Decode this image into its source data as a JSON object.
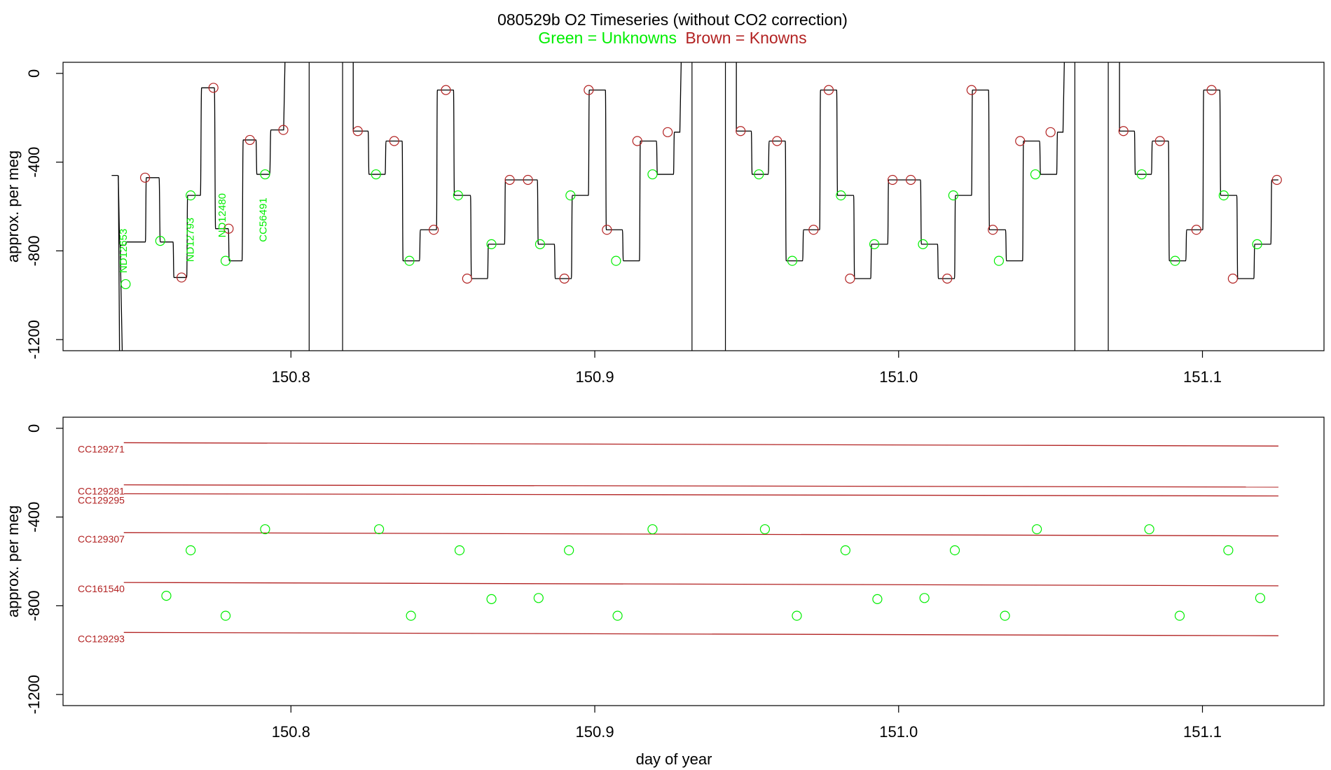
{
  "title": "080529b   O2 Timeseries (without CO2 correction)",
  "legend": {
    "unknowns_text": "Green = Unknowns",
    "knowns_text": "Brown = Knowns",
    "unknowns_color": "#00ee00",
    "knowns_color": "#b22222"
  },
  "colors": {
    "trace": "#000000",
    "unknowns": "#00ee00",
    "knowns": "#b22222"
  },
  "chart_data": [
    {
      "type": "line",
      "ylabel": "approx. per meg",
      "xlabel": "",
      "xlim": [
        150.725,
        151.14
      ],
      "ylim": [
        -1250,
        50
      ],
      "x_ticks": [
        150.8,
        150.9,
        151.0,
        151.1
      ],
      "x_tick_labels": [
        "150.8",
        "150.9",
        "151.0",
        "151.1"
      ],
      "y_ticks": [
        0,
        -400,
        -800,
        -1200
      ],
      "y_tick_labels": [
        "0",
        "-400",
        "-800",
        "-1200"
      ],
      "grid": false,
      "gaps": [
        [
          150.806,
          150.817
        ],
        [
          150.932,
          150.943
        ],
        [
          151.058,
          151.069
        ]
      ],
      "series": [
        {
          "color": "black",
          "cycles": [
            {
              "levels": [
                [
                  150.741,
                  150.743,
                  -460
                ],
                [
                  150.7438,
                  150.7454,
                  -775
                ],
                [
                  150.746,
                  150.7521,
                  -760
                ],
                [
                  150.7524,
                  150.7566,
                  -470
                ],
                [
                  150.757,
                  150.7612,
                  -760
                ],
                [
                  150.7615,
                  150.7657,
                  -920
                ],
                [
                  150.766,
                  150.7702,
                  -550
                ],
                [
                  150.7706,
                  150.7748,
                  -65
                ],
                [
                  150.7752,
                  150.7794,
                  -700
                ],
                [
                  150.7797,
                  150.7839,
                  -845
                ],
                [
                  150.7843,
                  150.7885,
                  -300
                ],
                [
                  150.7888,
                  150.793,
                  -455
                ],
                [
                  150.7934,
                  150.7976,
                  -255
                ]
              ]
            },
            {
              "levels": [
                [
                  150.8205,
                  150.8254,
                  -260
                ],
                [
                  150.8257,
                  150.831,
                  -455
                ],
                [
                  150.8313,
                  150.8366,
                  -305
                ],
                [
                  150.8369,
                  150.8423,
                  -845
                ],
                [
                  150.8426,
                  150.8479,
                  -705
                ],
                [
                  150.8482,
                  150.8535,
                  -75
                ],
                [
                  150.8538,
                  150.8591,
                  -550
                ],
                [
                  150.8594,
                  150.8647,
                  -925
                ],
                [
                  150.865,
                  150.8703,
                  -770
                ],
                [
                  150.8706,
                  150.8811,
                  -480
                ],
                [
                  150.8814,
                  150.8867,
                  -770
                ],
                [
                  150.887,
                  150.8923,
                  -925
                ],
                [
                  150.8926,
                  150.8979,
                  -550
                ],
                [
                  150.8982,
                  150.9035,
                  -75
                ],
                [
                  150.9038,
                  150.9091,
                  -705
                ],
                [
                  150.9094,
                  150.9147,
                  -845
                ],
                [
                  150.915,
                  150.9203,
                  -305
                ],
                [
                  150.9206,
                  150.9259,
                  -455
                ],
                [
                  150.9262,
                  150.928,
                  -265
                ]
              ]
            },
            {
              "levels": [
                [
                  150.9466,
                  150.9515,
                  -260
                ],
                [
                  150.9518,
                  150.9571,
                  -455
                ],
                [
                  150.9574,
                  150.9627,
                  -305
                ],
                [
                  150.963,
                  150.9684,
                  -845
                ],
                [
                  150.9687,
                  150.974,
                  -705
                ],
                [
                  150.9743,
                  150.9796,
                  -75
                ],
                [
                  150.9799,
                  150.9852,
                  -550
                ],
                [
                  150.9855,
                  150.9908,
                  -925
                ],
                [
                  150.9911,
                  150.9964,
                  -770
                ],
                [
                  150.9967,
                  151.0072,
                  -480
                ],
                [
                  151.0075,
                  151.0128,
                  -770
                ],
                [
                  151.0131,
                  151.0184,
                  -925
                ],
                [
                  151.0187,
                  151.024,
                  -550
                ],
                [
                  151.0243,
                  151.0296,
                  -75
                ],
                [
                  151.0299,
                  151.0352,
                  -705
                ],
                [
                  151.0355,
                  151.0408,
                  -845
                ],
                [
                  151.0411,
                  151.0464,
                  -305
                ],
                [
                  151.0467,
                  151.052,
                  -455
                ],
                [
                  151.0523,
                  151.0541,
                  -265
                ]
              ]
            },
            {
              "levels": [
                [
                  151.0727,
                  151.0776,
                  -260
                ],
                [
                  151.0779,
                  151.0832,
                  -455
                ],
                [
                  151.0835,
                  151.0888,
                  -305
                ],
                [
                  151.0891,
                  151.0945,
                  -845
                ],
                [
                  151.0948,
                  151.1001,
                  -705
                ],
                [
                  151.1004,
                  151.1057,
                  -75
                ],
                [
                  151.106,
                  151.1113,
                  -550
                ],
                [
                  151.1116,
                  151.1169,
                  -925
                ],
                [
                  151.1172,
                  151.1225,
                  -770
                ],
                [
                  151.1228,
                  151.125,
                  -480
                ]
              ]
            }
          ]
        }
      ],
      "knowns_points": [
        [
          150.752,
          -470
        ],
        [
          150.764,
          -920
        ],
        [
          150.7745,
          -65
        ],
        [
          150.7795,
          -700
        ],
        [
          150.7865,
          -300
        ],
        [
          150.7975,
          -255
        ],
        [
          150.822,
          -260
        ],
        [
          150.834,
          -305
        ],
        [
          150.847,
          -705
        ],
        [
          150.851,
          -75
        ],
        [
          150.858,
          -925
        ],
        [
          150.872,
          -480
        ],
        [
          150.878,
          -480
        ],
        [
          150.89,
          -925
        ],
        [
          150.898,
          -75
        ],
        [
          150.904,
          -705
        ],
        [
          150.914,
          -305
        ],
        [
          150.924,
          -265
        ],
        [
          150.948,
          -260
        ],
        [
          150.96,
          -305
        ],
        [
          150.972,
          -705
        ],
        [
          150.977,
          -75
        ],
        [
          150.984,
          -925
        ],
        [
          150.998,
          -480
        ],
        [
          151.004,
          -480
        ],
        [
          151.016,
          -925
        ],
        [
          151.024,
          -75
        ],
        [
          151.031,
          -705
        ],
        [
          151.04,
          -305
        ],
        [
          151.05,
          -265
        ],
        [
          151.074,
          -260
        ],
        [
          151.086,
          -305
        ],
        [
          151.098,
          -705
        ],
        [
          151.103,
          -75
        ],
        [
          151.11,
          -925
        ],
        [
          151.1245,
          -480
        ]
      ],
      "unknowns_points": [
        [
          150.7456,
          -950
        ],
        [
          150.757,
          -755
        ],
        [
          150.767,
          -550
        ],
        [
          150.7785,
          -845
        ],
        [
          150.7915,
          -455
        ],
        [
          150.828,
          -455
        ],
        [
          150.839,
          -845
        ],
        [
          150.855,
          -550
        ],
        [
          150.866,
          -770
        ],
        [
          150.882,
          -770
        ],
        [
          150.892,
          -550
        ],
        [
          150.907,
          -845
        ],
        [
          150.919,
          -455
        ],
        [
          150.954,
          -455
        ],
        [
          150.965,
          -845
        ],
        [
          150.981,
          -550
        ],
        [
          150.992,
          -770
        ],
        [
          151.008,
          -770
        ],
        [
          151.018,
          -550
        ],
        [
          151.033,
          -845
        ],
        [
          151.045,
          -455
        ],
        [
          151.08,
          -455
        ],
        [
          151.091,
          -845
        ],
        [
          151.107,
          -550
        ],
        [
          151.118,
          -770
        ]
      ],
      "annotations": [
        {
          "text": "ND12653",
          "x": 150.746,
          "y": -800
        },
        {
          "text": "ND12793",
          "x": 150.768,
          "y": -750
        },
        {
          "text": "ND12480",
          "x": 150.7785,
          "y": -640
        },
        {
          "text": "CC56491",
          "x": 150.792,
          "y": -660
        }
      ]
    },
    {
      "type": "scatter",
      "ylabel": "approx. per meg",
      "xlabel": "day of year",
      "xlim": [
        150.725,
        151.14
      ],
      "ylim": [
        -1250,
        50
      ],
      "x_ticks": [
        150.8,
        150.9,
        151.0,
        151.1
      ],
      "x_tick_labels": [
        "150.8",
        "150.9",
        "151.0",
        "151.1"
      ],
      "y_ticks": [
        0,
        -400,
        -800,
        -1200
      ],
      "y_tick_labels": [
        "0",
        "-400",
        "-800",
        "-1200"
      ],
      "grid": false,
      "knowns_lines": [
        {
          "name": "CC129271",
          "x0": 150.745,
          "x1": 151.125,
          "y0": -65,
          "y1": -80
        },
        {
          "name": "CC129281",
          "x0": 150.745,
          "x1": 151.125,
          "y0": -255,
          "y1": -265
        },
        {
          "name": "CC129295",
          "x0": 150.745,
          "x1": 151.125,
          "y0": -295,
          "y1": -305
        },
        {
          "name": "CC129307",
          "x0": 150.745,
          "x1": 151.125,
          "y0": -470,
          "y1": -485
        },
        {
          "name": "CC161540",
          "x0": 150.745,
          "x1": 151.125,
          "y0": -695,
          "y1": -710
        },
        {
          "name": "CC129293",
          "x0": 150.745,
          "x1": 151.125,
          "y0": -920,
          "y1": -935
        }
      ],
      "unknowns_points": [
        [
          150.759,
          -755
        ],
        [
          150.767,
          -550
        ],
        [
          150.7785,
          -845
        ],
        [
          150.7915,
          -455
        ],
        [
          150.829,
          -455
        ],
        [
          150.8395,
          -845
        ],
        [
          150.8555,
          -550
        ],
        [
          150.866,
          -770
        ],
        [
          150.8815,
          -765
        ],
        [
          150.8915,
          -550
        ],
        [
          150.9075,
          -845
        ],
        [
          150.919,
          -455
        ],
        [
          150.956,
          -455
        ],
        [
          150.9665,
          -845
        ],
        [
          150.9825,
          -550
        ],
        [
          150.993,
          -770
        ],
        [
          151.0085,
          -765
        ],
        [
          151.0185,
          -550
        ],
        [
          151.035,
          -845
        ],
        [
          151.0455,
          -455
        ],
        [
          151.0825,
          -455
        ],
        [
          151.0925,
          -845
        ],
        [
          151.1085,
          -550
        ],
        [
          151.119,
          -765
        ]
      ]
    }
  ]
}
